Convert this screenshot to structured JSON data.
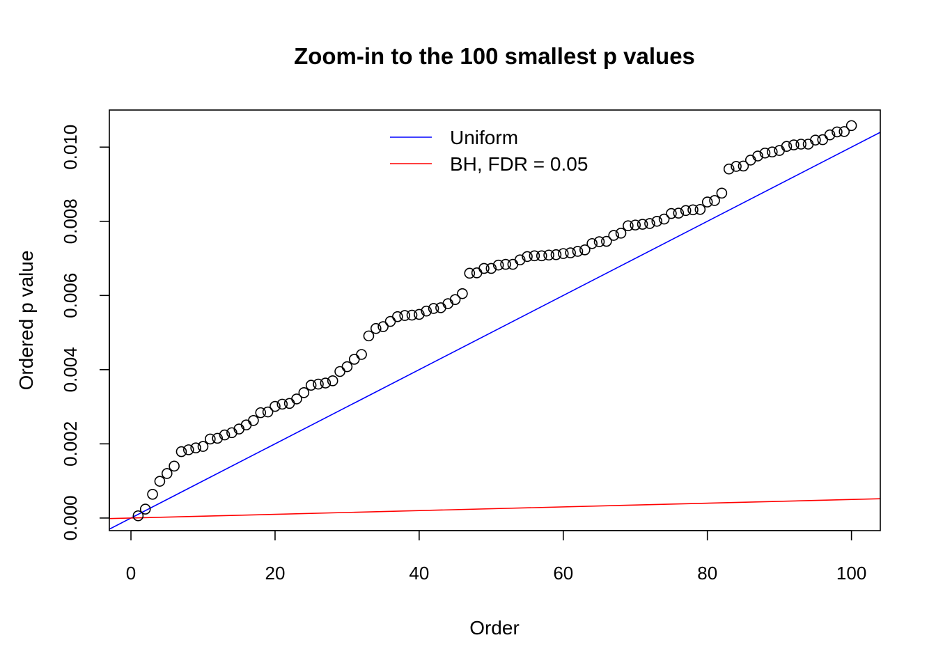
{
  "chart_data": {
    "type": "scatter",
    "title": "Zoom-in to the 100 smallest p values",
    "xlabel": "Order",
    "ylabel": "Ordered p value",
    "xlim": [
      -3,
      104
    ],
    "ylim": [
      -0.00034,
      0.011
    ],
    "x_ticks": [
      0,
      20,
      40,
      60,
      80,
      100
    ],
    "x_tick_labels": [
      "0",
      "20",
      "40",
      "60",
      "80",
      "100"
    ],
    "y_ticks": [
      0.0,
      0.002,
      0.004,
      0.006,
      0.008,
      0.01
    ],
    "y_tick_labels": [
      "0.000",
      "0.002",
      "0.004",
      "0.006",
      "0.008",
      "0.010"
    ],
    "legend": {
      "position": "top-center",
      "entries": [
        {
          "label": "Uniform",
          "color": "#0000FF"
        },
        {
          "label": "BH, FDR = 0.05",
          "color": "#FF0000"
        }
      ]
    },
    "lines": [
      {
        "name": "Uniform",
        "color": "#0000FF",
        "slope": 0.0001,
        "intercept": 0
      },
      {
        "name": "BH, FDR = 0.05",
        "color": "#FF0000",
        "slope": 5e-06,
        "intercept": 0
      }
    ],
    "series": [
      {
        "name": "Ordered p value",
        "marker": "open-circle",
        "color": "#000000",
        "x": [
          1,
          2,
          3,
          4,
          5,
          6,
          7,
          8,
          9,
          10,
          11,
          12,
          13,
          14,
          15,
          16,
          17,
          18,
          19,
          20,
          21,
          22,
          23,
          24,
          25,
          26,
          27,
          28,
          29,
          30,
          31,
          32,
          33,
          34,
          35,
          36,
          37,
          38,
          39,
          40,
          41,
          42,
          43,
          44,
          45,
          46,
          47,
          48,
          49,
          50,
          51,
          52,
          53,
          54,
          55,
          56,
          57,
          58,
          59,
          60,
          61,
          62,
          63,
          64,
          65,
          66,
          67,
          68,
          69,
          70,
          71,
          72,
          73,
          74,
          75,
          76,
          77,
          78,
          79,
          80,
          81,
          82,
          83,
          84,
          85,
          86,
          87,
          88,
          89,
          90,
          91,
          92,
          93,
          94,
          95,
          96,
          97,
          98,
          99,
          100
        ],
        "values": [
          6e-05,
          0.00024,
          0.00064,
          0.00099,
          0.0012,
          0.0014,
          0.00179,
          0.00184,
          0.00189,
          0.00193,
          0.00213,
          0.00215,
          0.00224,
          0.0023,
          0.0024,
          0.00251,
          0.00263,
          0.00284,
          0.00286,
          0.00301,
          0.00307,
          0.00309,
          0.00321,
          0.00338,
          0.00358,
          0.00361,
          0.00364,
          0.0037,
          0.00395,
          0.00408,
          0.00428,
          0.00441,
          0.00491,
          0.00511,
          0.00516,
          0.0053,
          0.00543,
          0.00546,
          0.00547,
          0.00549,
          0.00558,
          0.00565,
          0.00567,
          0.00578,
          0.00589,
          0.00605,
          0.0066,
          0.00661,
          0.00673,
          0.00673,
          0.00682,
          0.00684,
          0.00684,
          0.00696,
          0.00705,
          0.00707,
          0.00707,
          0.00709,
          0.0071,
          0.00713,
          0.00715,
          0.00719,
          0.00723,
          0.0074,
          0.00745,
          0.00746,
          0.00762,
          0.00768,
          0.00788,
          0.0079,
          0.00792,
          0.00794,
          0.008,
          0.00806,
          0.00821,
          0.00822,
          0.00829,
          0.00831,
          0.00832,
          0.00852,
          0.00856,
          0.00876,
          0.00941,
          0.00948,
          0.00949,
          0.00965,
          0.00976,
          0.00984,
          0.00987,
          0.00991,
          0.01002,
          0.01006,
          0.01008,
          0.01008,
          0.01019,
          0.0102,
          0.01033,
          0.01041,
          0.01042,
          0.01058
        ]
      }
    ]
  }
}
